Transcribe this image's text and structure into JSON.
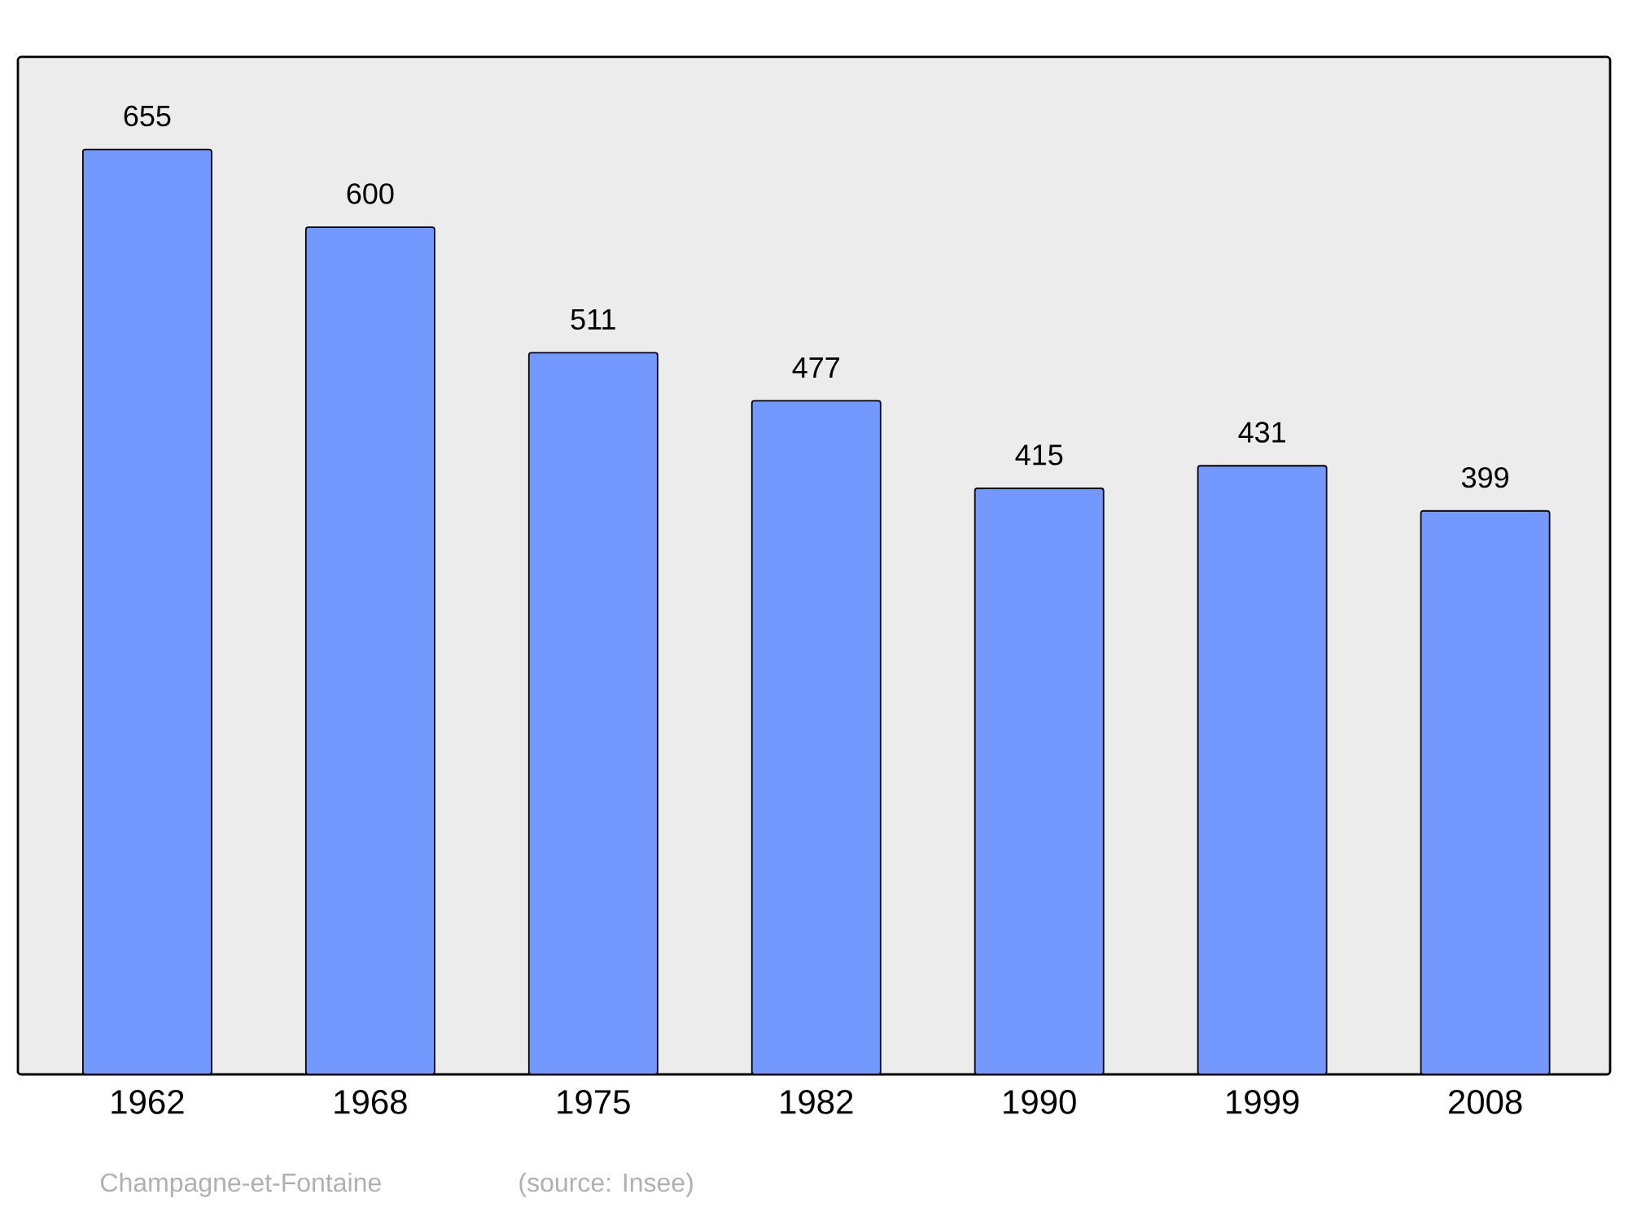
{
  "chart_data": {
    "type": "bar",
    "categories": [
      "1962",
      "1968",
      "1975",
      "1982",
      "1990",
      "1999",
      "2008"
    ],
    "values": [
      655,
      600,
      511,
      477,
      415,
      431,
      399
    ],
    "color": "#7399ff",
    "data_labels": true,
    "annotations": [
      "Champagne-et-Fontaine",
      "(source: Insee)"
    ]
  }
}
